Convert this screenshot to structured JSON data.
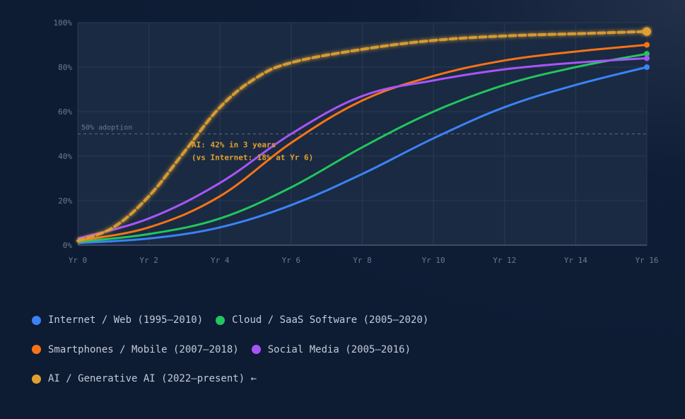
{
  "chart_data": {
    "type": "line",
    "x": [
      0,
      1,
      2,
      3,
      4,
      5,
      6,
      7,
      8,
      9,
      10,
      11,
      12,
      13,
      14,
      15,
      16
    ],
    "x_tick_labels": [
      "Yr 0",
      "Yr 2",
      "Yr 4",
      "Yr 6",
      "Yr 8",
      "Yr 10",
      "Yr 12",
      "Yr 14",
      "Yr 16"
    ],
    "x_ticks": [
      0,
      2,
      4,
      6,
      8,
      10,
      12,
      14,
      16
    ],
    "xlim": [
      0,
      16
    ],
    "y_tick_labels": [
      "0%",
      "20%",
      "40%",
      "60%",
      "80%",
      "100%"
    ],
    "y_ticks": [
      0,
      20,
      40,
      60,
      80,
      100
    ],
    "ylim": [
      0,
      100
    ],
    "grid": true,
    "reference_line": {
      "y": 50,
      "label": "50% adoption"
    },
    "annotation": {
      "lines": [
        "AI: 42% in 3 years",
        "(vs Internet: 18% at Yr 6)"
      ],
      "color": "#e0a030"
    },
    "series": [
      {
        "name": "Internet / Web (1995–2010)",
        "color": "#3b82f6",
        "style": "solid",
        "x": [
          0,
          2,
          4,
          6,
          8,
          10,
          12,
          14,
          16
        ],
        "values": [
          1,
          3,
          8,
          18,
          32,
          48,
          62,
          72,
          80
        ]
      },
      {
        "name": "Cloud / SaaS Software (2005–2020)",
        "color": "#22c55e",
        "style": "solid",
        "x": [
          0,
          2,
          4,
          6,
          8,
          10,
          12,
          14,
          16
        ],
        "values": [
          1.5,
          5,
          12,
          26,
          44,
          60,
          72,
          80,
          86
        ]
      },
      {
        "name": "Smartphones / Mobile (2007–2018)",
        "color": "#f97316",
        "style": "solid",
        "x": [
          0,
          2,
          4,
          6,
          8,
          10,
          12,
          14,
          16
        ],
        "values": [
          2,
          8,
          22,
          46,
          65,
          76,
          83,
          87,
          90
        ]
      },
      {
        "name": "Social Media (2005–2016)",
        "color": "#a855f7",
        "style": "solid",
        "x": [
          0,
          2,
          4,
          6,
          8,
          10,
          12,
          14,
          16
        ],
        "values": [
          3,
          12,
          28,
          50,
          67,
          74,
          79,
          82,
          84
        ]
      },
      {
        "name": "AI / Generative AI (2022–present) ←",
        "color": "#e0a030",
        "style": "dashed",
        "x": [
          0,
          1,
          2,
          3,
          4,
          5,
          6,
          8,
          10,
          12,
          14,
          16
        ],
        "values": [
          2,
          8,
          22,
          42,
          62,
          75,
          82,
          88,
          92,
          94,
          95,
          96
        ]
      }
    ]
  },
  "legend": {
    "rows": [
      [
        0,
        1
      ],
      [
        2,
        3
      ],
      [
        4
      ]
    ]
  }
}
